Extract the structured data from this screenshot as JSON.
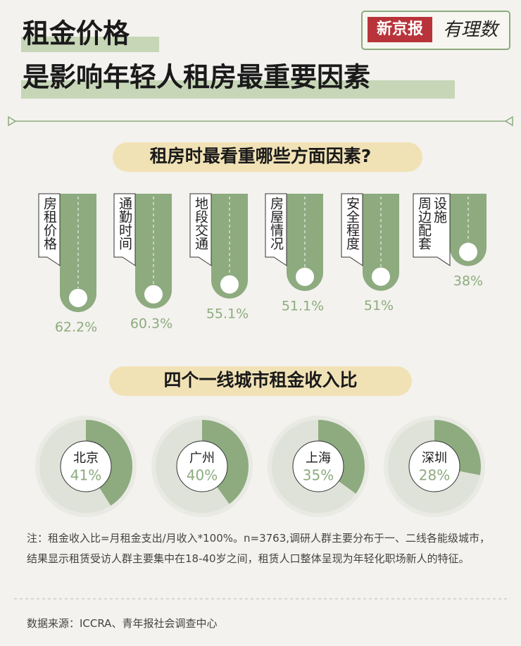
{
  "header": {
    "title_line1": "租金价格",
    "title_line2": "是影响年轻人租房最重要因素",
    "brand": "新京报",
    "brand_sub": "有理数"
  },
  "chart_data": [
    {
      "type": "bar",
      "title": "租房时最看重哪些方面因素?",
      "categories": [
        "房租价格",
        "通勤时间",
        "地段交通",
        "房屋情况",
        "安全程度",
        "周边配套设施"
      ],
      "values": [
        62.2,
        60.3,
        55.1,
        51.1,
        51,
        38
      ],
      "value_labels": [
        "62.2%",
        "60.3%",
        "55.1%",
        "51.1%",
        "51%",
        "38%"
      ],
      "color": "#8dab7f"
    },
    {
      "type": "pie",
      "title": "四个一线城市租金收入比",
      "categories": [
        "北京",
        "广州",
        "上海",
        "深圳"
      ],
      "values": [
        41,
        40,
        35,
        28
      ],
      "value_labels": [
        "41%",
        "40%",
        "35%",
        "28%"
      ],
      "color": "#8dab7f",
      "rest_color": "#dfe2d8"
    }
  ],
  "note": "注：租金收入比=月租金支出/月收入*100%。n=3763,调研人群主要分布于一、二线各能级城市，结果显示租赁受访人群主要集中在18-40岁之间，租赁人口整体呈现为年轻化职场新人的特征。",
  "source": "数据来源：ICCRA、青年报社会调查中心"
}
